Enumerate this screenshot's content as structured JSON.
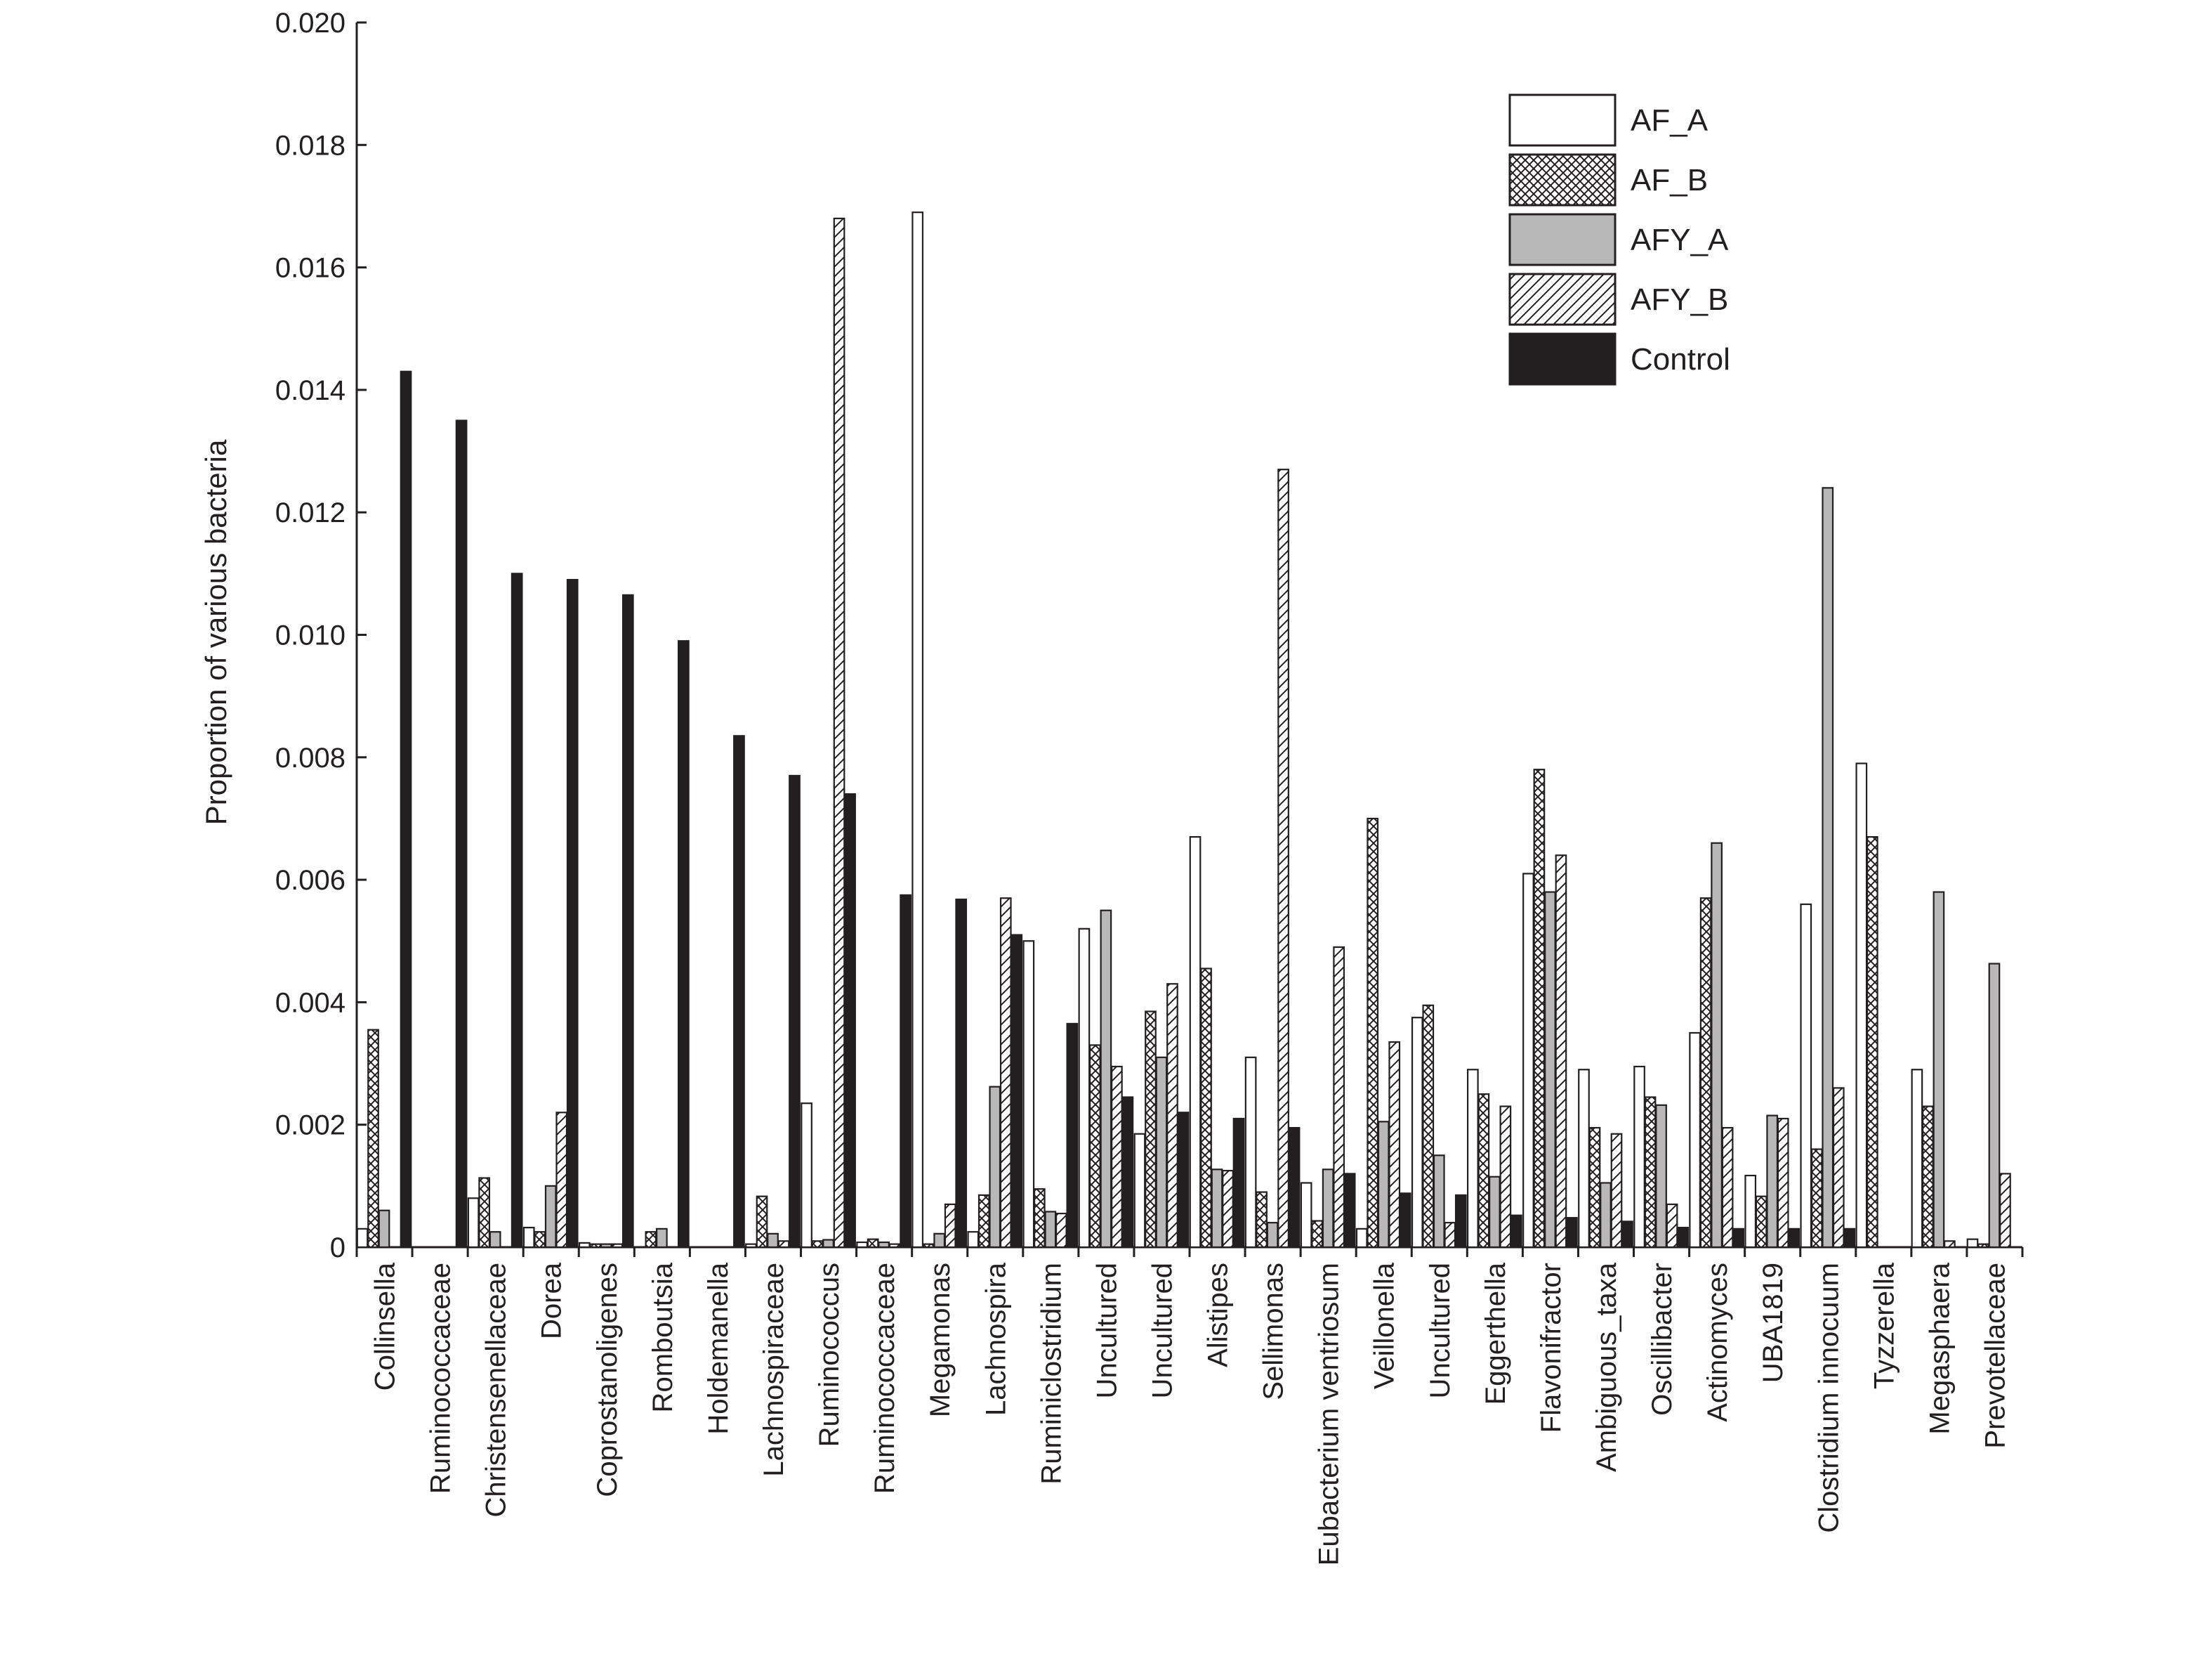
{
  "chart_data": {
    "type": "bar",
    "ylabel": "Proportion of various bacteria",
    "xlabel": "",
    "ylim": [
      0,
      0.02
    ],
    "yticks": [
      "0",
      "0.002",
      "0.004",
      "0.006",
      "0.008",
      "0.010",
      "0.012",
      "0.014",
      "0.016",
      "0.018",
      "0.020"
    ],
    "grid": false,
    "legend_position": "top-right",
    "categories": [
      "Collinsella",
      "Ruminococcaceae",
      "Christensenellaceae",
      "Dorea",
      "Coprostanoligenes",
      "Romboutsia",
      "Holdemanella",
      "Lachnospiraceae",
      "Ruminococcus",
      "Ruminococcaceae",
      "Megamonas",
      "Lachnospira",
      "Ruminiclostridium",
      "Uncultured",
      "Uncultured",
      "Alistipes",
      "Sellimonas",
      "Eubacterium ventriosum",
      "Veillonella",
      "Uncultured",
      "Eggerthella",
      "Flavonifractor",
      "Ambiguous_taxa",
      "Oscillibacter",
      "Actinomyces",
      "UBA1819",
      "Clostridium innocuum",
      "Tyzzerella",
      "Megasphaera",
      "Prevotellaceae"
    ],
    "series": [
      {
        "name": "AF_A",
        "pattern": "white",
        "values": [
          0.0003,
          0,
          0.0008,
          0.00032,
          7e-05,
          0,
          0,
          5e-05,
          0.00235,
          8e-05,
          0.0169,
          0.00025,
          0.005,
          0.0052,
          0.00185,
          0.0067,
          0.0031,
          0.00105,
          0.0003,
          0.00375,
          0.0029,
          0.0061,
          0.0029,
          0.00295,
          0.0035,
          0.00117,
          0.0056,
          0.0079,
          0.0029,
          0.00013
        ]
      },
      {
        "name": "AF_B",
        "pattern": "crosshatch",
        "values": [
          0.00355,
          0,
          0.00113,
          0.00025,
          5e-05,
          0.00025,
          0,
          0.00083,
          0.0001,
          0.00013,
          5e-05,
          0.00085,
          0.00095,
          0.0033,
          0.00385,
          0.00455,
          0.0009,
          0.00043,
          0.007,
          0.00395,
          0.0025,
          0.0078,
          0.00195,
          0.00245,
          0.0057,
          0.00083,
          0.0016,
          0.0067,
          0.0023,
          5e-05
        ]
      },
      {
        "name": "AFY_A",
        "pattern": "gray",
        "values": [
          0.0006,
          0,
          0.00025,
          0.001,
          5e-05,
          0.0003,
          0,
          0.00022,
          0.00012,
          8e-05,
          0.00022,
          0.00262,
          0.00058,
          0.0055,
          0.0031,
          0.00127,
          0.0004,
          0.00127,
          0.00205,
          0.0015,
          0.00115,
          0.0058,
          0.00105,
          0.00232,
          0.0066,
          0.00215,
          0.0124,
          0,
          0.0058,
          0.00463
        ]
      },
      {
        "name": "AFY_B",
        "pattern": "diagonal",
        "values": [
          0,
          0,
          0,
          0.0022,
          5e-05,
          0,
          0,
          0.0001,
          0.0168,
          5e-05,
          0.0007,
          0.0057,
          0.00055,
          0.00295,
          0.0043,
          0.00125,
          0.0127,
          0.0049,
          0.00335,
          0.0004,
          0.0023,
          0.0064,
          0.00185,
          0.0007,
          0.00195,
          0.0021,
          0.0026,
          0,
          0.0001,
          0.0012
        ]
      },
      {
        "name": "Control",
        "pattern": "black",
        "values": [
          0.0143,
          0.0135,
          0.011,
          0.0109,
          0.01065,
          0.0099,
          0.00835,
          0.0077,
          0.0074,
          0.00575,
          0.00568,
          0.0051,
          0.00365,
          0.00245,
          0.0022,
          0.0021,
          0.00195,
          0.0012,
          0.00088,
          0.00085,
          0.00052,
          0.00048,
          0.00042,
          0.00032,
          0.0003,
          0.0003,
          0.0003,
          0,
          0,
          0
        ]
      }
    ],
    "colors": {
      "axis": "#231f20",
      "stroke": "#231f20",
      "white": "#ffffff",
      "gray": "#b8b8b8",
      "black": "#231f20"
    }
  }
}
